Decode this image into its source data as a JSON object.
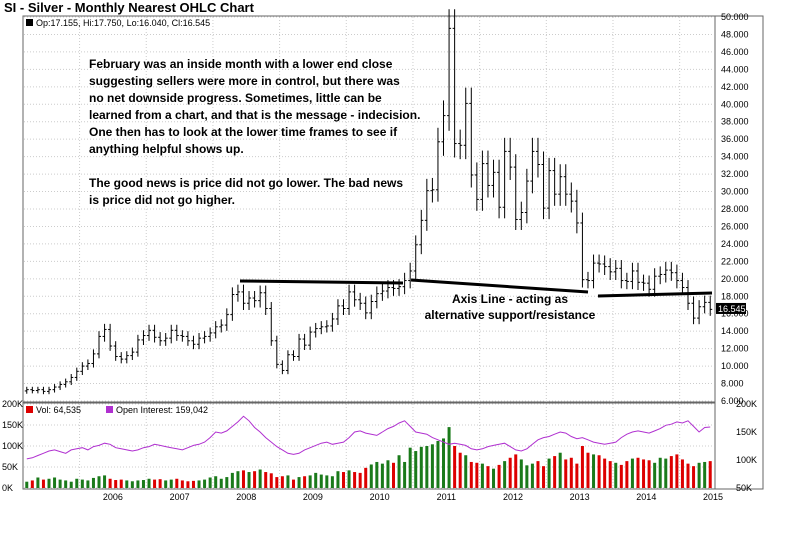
{
  "header": {
    "title": "SI - Silver - Monthly Nearest OHLC Chart",
    "ohlc_legend": "Op:17.155, Hi:17.750, Lo:16.040, Cl:16.545",
    "last_price_label": "16.545",
    "volume_legend": "Vol: 64,535",
    "oi_legend": "Open Interest: 159,042"
  },
  "annotations": {
    "comment_lines": [
      "February was an inside month with a lower end close",
      "suggesting sellers were more in control, but there was",
      "no net downside progress.  Sometimes, little can be",
      "learned from a chart, and that is the message - indecision.",
      "One then has to look at the lower time frames to see if",
      "anything helpful shows up.",
      "",
      "The good news is price did not go lower.  The bad news",
      "is price did not go higher."
    ],
    "axis_label_lines": [
      "Axis Line - acting as",
      "alternative support/resistance"
    ]
  },
  "colors": {
    "bar": "#000000",
    "vol_up": "#1a7a1a",
    "vol_down": "#dd0000",
    "open_interest": "#b030d0",
    "grid": "#cccccc",
    "last_price_bg": "#000000"
  },
  "chart_data": [
    {
      "type": "ohlc",
      "title": "SI - Silver - Monthly Nearest OHLC Chart",
      "y_ticks": [
        "50.000",
        "48.000",
        "46.000",
        "44.000",
        "42.000",
        "40.000",
        "38.000",
        "36.000",
        "34.000",
        "32.000",
        "30.000",
        "28.000",
        "26.000",
        "24.000",
        "22.000",
        "20.000",
        "18.000",
        "16.000",
        "14.000",
        "12.000",
        "10.000",
        "8.000",
        "6.000"
      ],
      "ylim": [
        6,
        50
      ],
      "x_ticks": [
        "2006",
        "2007",
        "2008",
        "2009",
        "2010",
        "2011",
        "2012",
        "2013",
        "2014",
        "2015"
      ],
      "close_series": [
        7.3,
        7.2,
        7.3,
        7.1,
        7.3,
        7.6,
        7.9,
        8.2,
        8.7,
        9.4,
        10.0,
        10.3,
        11.4,
        13.4,
        14.2,
        12.3,
        11.1,
        10.8,
        11.2,
        11.6,
        13.0,
        13.5,
        14.1,
        13.3,
        12.9,
        13.2,
        14.1,
        13.5,
        13.4,
        12.9,
        12.5,
        13.2,
        13.4,
        13.8,
        14.5,
        14.7,
        15.9,
        18.2,
        18.5,
        17.2,
        17.8,
        17.5,
        18.4,
        16.6,
        12.9,
        10.2,
        9.5,
        11.3,
        11.1,
        13.1,
        12.4,
        13.9,
        14.3,
        14.5,
        14.6,
        15.4,
        16.9,
        16.6,
        18.5,
        17.6,
        17.2,
        16.1,
        17.4,
        18.3,
        18.6,
        19.0,
        18.9,
        19.1,
        19.8,
        20.9,
        23.9,
        26.7,
        30.1,
        30.2,
        35.7,
        38.7,
        48.7,
        35.5,
        35.3,
        40.1,
        31.9,
        29.1,
        33.2,
        30.7,
        32.2,
        28.2,
        34.6,
        32.8,
        26.8,
        27.6,
        31.2,
        34.6,
        33.1,
        28.1,
        32.4,
        29.7,
        31.7,
        29.7,
        28.9,
        26.4,
        19.9,
        19.8,
        21.8,
        21.7,
        21.4,
        20.8,
        21.2,
        19.8,
        19.7,
        20.9,
        19.6,
        19.5,
        18.8,
        20.3,
        20.5,
        21.0,
        20.7,
        19.8,
        19.0,
        17.2,
        15.5,
        16.8,
        17.3,
        16.5
      ],
      "last": 16.545
    },
    {
      "type": "bar",
      "title": "Vol / Open Interest",
      "y_ticks_left": [
        "200K",
        "150K",
        "100K",
        "50K",
        "0K"
      ],
      "y_ticks_right": [
        "200K",
        "150K",
        "100K",
        "50K"
      ],
      "ylim_vol": [
        0,
        200000
      ],
      "ylim_oi": [
        50000,
        200000
      ],
      "series": [
        {
          "name": "Vol: 64,535",
          "values": [
            15,
            18,
            25,
            20,
            22,
            25,
            20,
            18,
            15,
            22,
            20,
            18,
            24,
            28,
            30,
            22,
            19,
            20,
            18,
            16,
            18,
            19,
            22,
            20,
            21,
            18,
            20,
            22,
            18,
            16,
            17,
            18,
            20,
            25,
            28,
            22,
            26,
            36,
            40,
            42,
            38,
            40,
            44,
            38,
            35,
            26,
            28,
            30,
            20,
            26,
            28,
            30,
            36,
            32,
            30,
            28,
            40,
            38,
            42,
            38,
            36,
            48,
            56,
            62,
            58,
            66,
            60,
            78,
            62,
            96,
            88,
            98,
            100,
            104,
            112,
            118,
            145,
            100,
            84,
            78,
            62,
            60,
            58,
            52,
            46,
            55,
            64,
            72,
            80,
            68,
            54,
            58,
            64,
            52,
            70,
            76,
            84,
            68,
            72,
            58,
            100,
            84,
            80,
            78,
            70,
            64,
            60,
            55,
            64,
            70,
            72,
            68,
            66,
            60,
            72,
            70,
            76,
            80,
            68,
            58,
            52,
            60,
            62,
            64
          ]
        },
        {
          "name": "Open Interest: 159,042",
          "values": [
            102,
            104,
            108,
            112,
            116,
            118,
            115,
            112,
            118,
            120,
            122,
            118,
            124,
            126,
            130,
            128,
            122,
            120,
            118,
            116,
            118,
            122,
            124,
            128,
            126,
            124,
            122,
            120,
            118,
            122,
            126,
            128,
            132,
            140,
            150,
            148,
            152,
            160,
            168,
            178,
            170,
            158,
            150,
            140,
            132,
            124,
            118,
            112,
            110,
            112,
            118,
            122,
            126,
            130,
            132,
            128,
            130,
            132,
            140,
            150,
            152,
            148,
            146,
            144,
            150,
            156,
            160,
            166,
            170,
            160,
            150,
            148,
            146,
            140,
            136,
            132,
            128,
            130,
            128,
            126,
            120,
            118,
            120,
            124,
            126,
            128,
            130,
            124,
            118,
            116,
            120,
            128,
            136,
            140,
            142,
            146,
            150,
            148,
            142,
            138,
            140,
            136,
            132,
            130,
            128,
            130,
            132,
            140,
            146,
            150,
            152,
            150,
            148,
            152,
            156,
            162,
            164,
            168,
            166,
            170,
            160,
            150,
            158,
            159
          ]
        }
      ]
    }
  ]
}
